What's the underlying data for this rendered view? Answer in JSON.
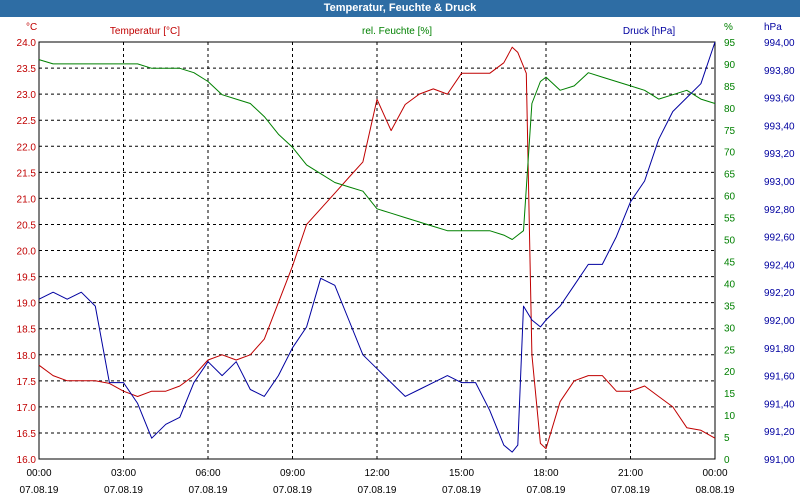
{
  "window": {
    "title": "Temperatur, Feuchte & Druck"
  },
  "colors": {
    "temperature": "#c00000",
    "humidity": "#008000",
    "pressure": "#0000a0",
    "grid": "#000000",
    "titlebar": "#2e6da4"
  },
  "chart_data": {
    "type": "line",
    "grid": true,
    "legend": "top, above each axis",
    "x_axis": {
      "range": [
        "07.08.19 00:00",
        "08.08.19 00:00"
      ],
      "ticks": [
        {
          "time": "00:00",
          "date": "07.08.19"
        },
        {
          "time": "03:00",
          "date": "07.08.19"
        },
        {
          "time": "06:00",
          "date": "07.08.19"
        },
        {
          "time": "09:00",
          "date": "07.08.19"
        },
        {
          "time": "12:00",
          "date": "07.08.19"
        },
        {
          "time": "15:00",
          "date": "07.08.19"
        },
        {
          "time": "18:00",
          "date": "07.08.19"
        },
        {
          "time": "21:00",
          "date": "07.08.19"
        },
        {
          "time": "00:00",
          "date": "08.08.19"
        }
      ]
    },
    "axes": {
      "temperature": {
        "side": "left",
        "unit": "°C",
        "ylim": [
          16.0,
          24.0
        ],
        "ticks": [
          "16.0",
          "16.5",
          "17.0",
          "17.5",
          "18.0",
          "18.5",
          "19.0",
          "19.5",
          "20.0",
          "20.5",
          "21.0",
          "21.5",
          "22.0",
          "22.5",
          "23.0",
          "23.5",
          "24.0"
        ]
      },
      "humidity": {
        "side": "right-inner",
        "unit": "%",
        "ylim": [
          0,
          95
        ],
        "ticks": [
          "0",
          "5",
          "10",
          "15",
          "20",
          "25",
          "30",
          "35",
          "40",
          "45",
          "50",
          "55",
          "60",
          "65",
          "70",
          "75",
          "80",
          "85",
          "90",
          "95"
        ]
      },
      "pressure": {
        "side": "right-outer",
        "unit": "hPa",
        "ylim": [
          991.0,
          994.0
        ],
        "ticks": [
          "991,00",
          "991,20",
          "991,40",
          "991,60",
          "991,80",
          "992,00",
          "992,20",
          "992,40",
          "992,60",
          "992,80",
          "993,00",
          "993,20",
          "993,40",
          "993,60",
          "993,80",
          "994,00"
        ]
      }
    },
    "series": [
      {
        "name": "Temperatur [°C]",
        "axis": "temperature",
        "x": [
          0,
          0.5,
          1,
          1.5,
          2,
          2.5,
          3,
          3.5,
          4,
          4.5,
          5,
          5.5,
          6,
          6.5,
          7,
          7.5,
          8,
          8.5,
          9,
          9.5,
          10,
          10.5,
          11,
          11.5,
          12,
          12.5,
          13,
          13.5,
          14,
          14.5,
          15,
          15.5,
          16,
          16.5,
          16.8,
          17,
          17.3,
          17.5,
          17.8,
          18,
          18.5,
          19,
          19.5,
          20,
          20.5,
          21,
          21.5,
          22,
          22.5,
          23,
          23.5,
          24
        ],
        "values": [
          17.8,
          17.6,
          17.5,
          17.5,
          17.5,
          17.45,
          17.3,
          17.2,
          17.3,
          17.3,
          17.4,
          17.6,
          17.9,
          18.0,
          17.9,
          18.0,
          18.3,
          19.0,
          19.7,
          20.5,
          20.8,
          21.1,
          21.4,
          21.7,
          22.9,
          22.3,
          22.8,
          23.0,
          23.1,
          23.0,
          23.4,
          23.4,
          23.4,
          23.6,
          23.9,
          23.8,
          23.4,
          18.0,
          16.3,
          16.2,
          17.1,
          17.5,
          17.6,
          17.6,
          17.3,
          17.3,
          17.4,
          17.2,
          17.0,
          16.6,
          16.55,
          16.4
        ]
      },
      {
        "name": "rel. Feuchte [%]",
        "axis": "humidity",
        "x": [
          0,
          0.5,
          1,
          1.5,
          2,
          2.5,
          3,
          3.5,
          4,
          4.5,
          5,
          5.5,
          6,
          6.5,
          7,
          7.5,
          8,
          8.5,
          9,
          9.5,
          10,
          10.5,
          11,
          11.5,
          12,
          12.5,
          13,
          13.5,
          14,
          14.5,
          15,
          15.5,
          16,
          16.5,
          16.8,
          17,
          17.2,
          17.5,
          17.8,
          18,
          18.5,
          19,
          19.5,
          20,
          20.5,
          21,
          21.5,
          22,
          22.5,
          23,
          23.5,
          24
        ],
        "values": [
          91,
          90,
          90,
          90,
          90,
          90,
          90,
          90,
          89,
          89,
          89,
          88,
          86,
          83,
          82,
          81,
          78,
          74,
          71,
          67,
          65,
          63,
          62,
          61,
          57,
          56,
          55,
          54,
          53,
          52,
          52,
          52,
          52,
          51,
          50,
          51,
          52,
          81,
          86,
          87,
          84,
          85,
          88,
          87,
          86,
          85,
          84,
          82,
          83,
          84,
          82,
          81
        ]
      },
      {
        "name": "Druck [hPa]",
        "axis": "pressure",
        "x": [
          0,
          0.5,
          1,
          1.5,
          2,
          2.5,
          3,
          3.5,
          4,
          4.5,
          5,
          5.5,
          6,
          6.5,
          7,
          7.5,
          8,
          8.5,
          9,
          9.5,
          10,
          10.5,
          11,
          11.5,
          12,
          12.5,
          13,
          13.5,
          14,
          14.5,
          15,
          15.5,
          16,
          16.5,
          16.8,
          17,
          17.2,
          17.5,
          17.8,
          18,
          18.5,
          19,
          19.5,
          20,
          20.5,
          21,
          21.5,
          22,
          22.5,
          23,
          23.5,
          24
        ],
        "values": [
          992.15,
          992.2,
          992.15,
          992.2,
          992.1,
          991.55,
          991.55,
          991.4,
          991.15,
          991.25,
          991.3,
          991.55,
          991.7,
          991.6,
          991.7,
          991.5,
          991.45,
          991.6,
          991.8,
          991.95,
          992.3,
          992.25,
          992.0,
          991.75,
          991.65,
          991.55,
          991.45,
          991.5,
          991.55,
          991.6,
          991.55,
          991.55,
          991.35,
          991.1,
          991.05,
          991.1,
          992.1,
          992.0,
          991.95,
          992.0,
          992.1,
          992.25,
          992.4,
          992.4,
          992.6,
          992.85,
          993.0,
          993.3,
          993.5,
          993.6,
          993.7,
          994.0
        ]
      }
    ]
  }
}
